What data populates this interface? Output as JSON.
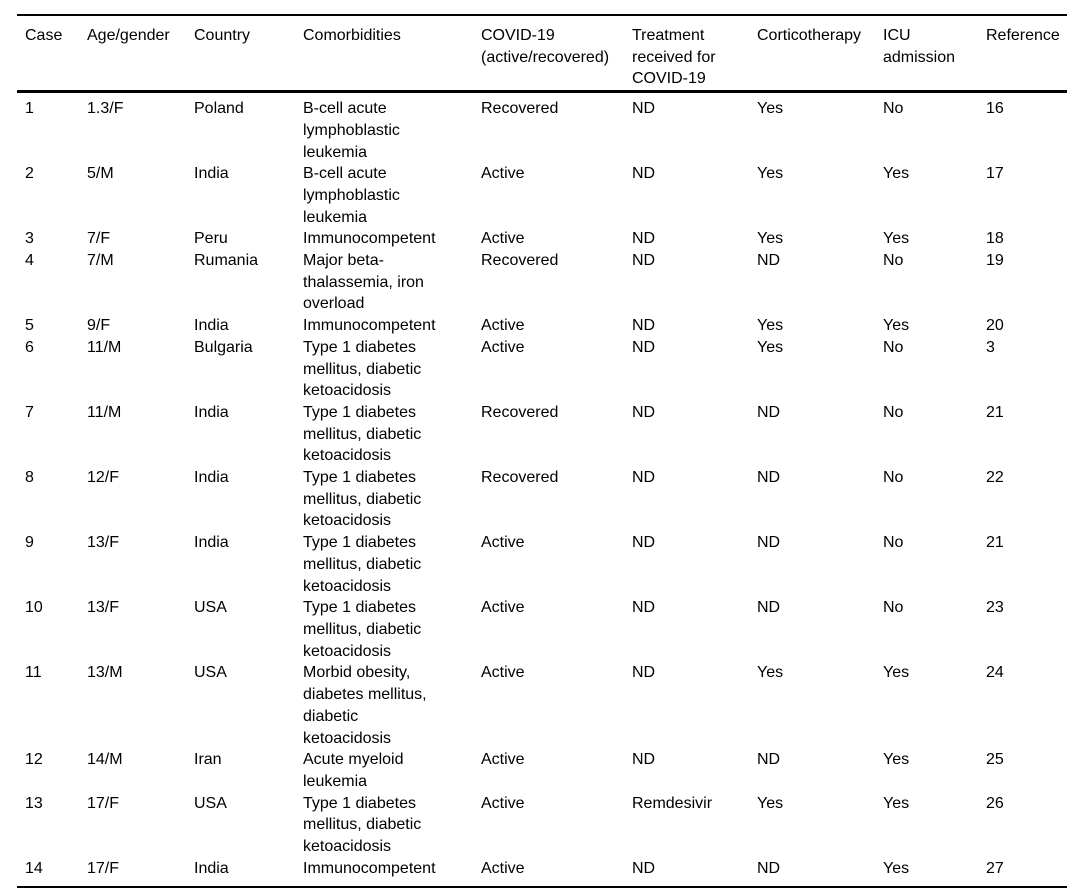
{
  "colors": {
    "background": "#ffffff",
    "text": "#000000",
    "rule": "#000000"
  },
  "table": {
    "columns": [
      {
        "key": "case",
        "label": "Case"
      },
      {
        "key": "age-gender",
        "label": "Age/gender"
      },
      {
        "key": "country",
        "label": "Country"
      },
      {
        "key": "comorbidities",
        "label": "Comorbidities"
      },
      {
        "key": "covid-status",
        "label": "COVID-19\n(active/recovered)"
      },
      {
        "key": "treatment",
        "label": "Treatment\nreceived for\nCOVID-19"
      },
      {
        "key": "corticotherapy",
        "label": "Corticotherapy"
      },
      {
        "key": "icu-admission",
        "label": "ICU\nadmission"
      },
      {
        "key": "reference",
        "label": "Reference"
      }
    ],
    "rows": [
      [
        "1",
        "1.3/F",
        "Poland",
        "B-cell acute\nlymphoblastic\nleukemia",
        "Recovered",
        "ND",
        "Yes",
        "No",
        "16"
      ],
      [
        "2",
        "5/M",
        "India",
        "B-cell acute\nlymphoblastic\nleukemia",
        "Active",
        "ND",
        "Yes",
        "Yes",
        "17"
      ],
      [
        "3",
        "7/F",
        "Peru",
        "Immunocompetent",
        "Active",
        "ND",
        "Yes",
        "Yes",
        "18"
      ],
      [
        "4",
        "7/M",
        "Rumania",
        "Major beta-\nthalassemia, iron\noverload",
        "Recovered",
        "ND",
        "ND",
        "No",
        "19"
      ],
      [
        "5",
        "9/F",
        "India",
        "Immunocompetent",
        "Active",
        "ND",
        "Yes",
        "Yes",
        "20"
      ],
      [
        "6",
        "11/M",
        "Bulgaria",
        "Type 1 diabetes\nmellitus, diabetic\nketoacidosis",
        "Active",
        "ND",
        "Yes",
        "No",
        "3"
      ],
      [
        "7",
        "11/M",
        "India",
        "Type 1 diabetes\nmellitus, diabetic\nketoacidosis",
        "Recovered",
        "ND",
        "ND",
        "No",
        "21"
      ],
      [
        "8",
        "12/F",
        "India",
        "Type 1 diabetes\nmellitus, diabetic\nketoacidosis",
        "Recovered",
        "ND",
        "ND",
        "No",
        "22"
      ],
      [
        "9",
        "13/F",
        "India",
        "Type 1 diabetes\nmellitus, diabetic\nketoacidosis",
        "Active",
        "ND",
        "ND",
        "No",
        "21"
      ],
      [
        "10",
        "13/F",
        "USA",
        "Type 1 diabetes\nmellitus, diabetic\nketoacidosis",
        "Active",
        "ND",
        "ND",
        "No",
        "23"
      ],
      [
        "11",
        "13/M",
        "USA",
        "Morbid obesity,\ndiabetes mellitus,\ndiabetic\nketoacidosis",
        "Active",
        "ND",
        "Yes",
        "Yes",
        "24"
      ],
      [
        "12",
        "14/M",
        "Iran",
        "Acute myeloid\nleukemia",
        "Active",
        "ND",
        "ND",
        "Yes",
        "25"
      ],
      [
        "13",
        "17/F",
        "USA",
        "Type 1 diabetes\nmellitus, diabetic\nketoacidosis",
        "Active",
        "Remdesivir",
        "Yes",
        "Yes",
        "26"
      ],
      [
        "14",
        "17/F",
        "India",
        "Immunocompetent",
        "Active",
        "ND",
        "ND",
        "Yes",
        "27"
      ]
    ]
  }
}
